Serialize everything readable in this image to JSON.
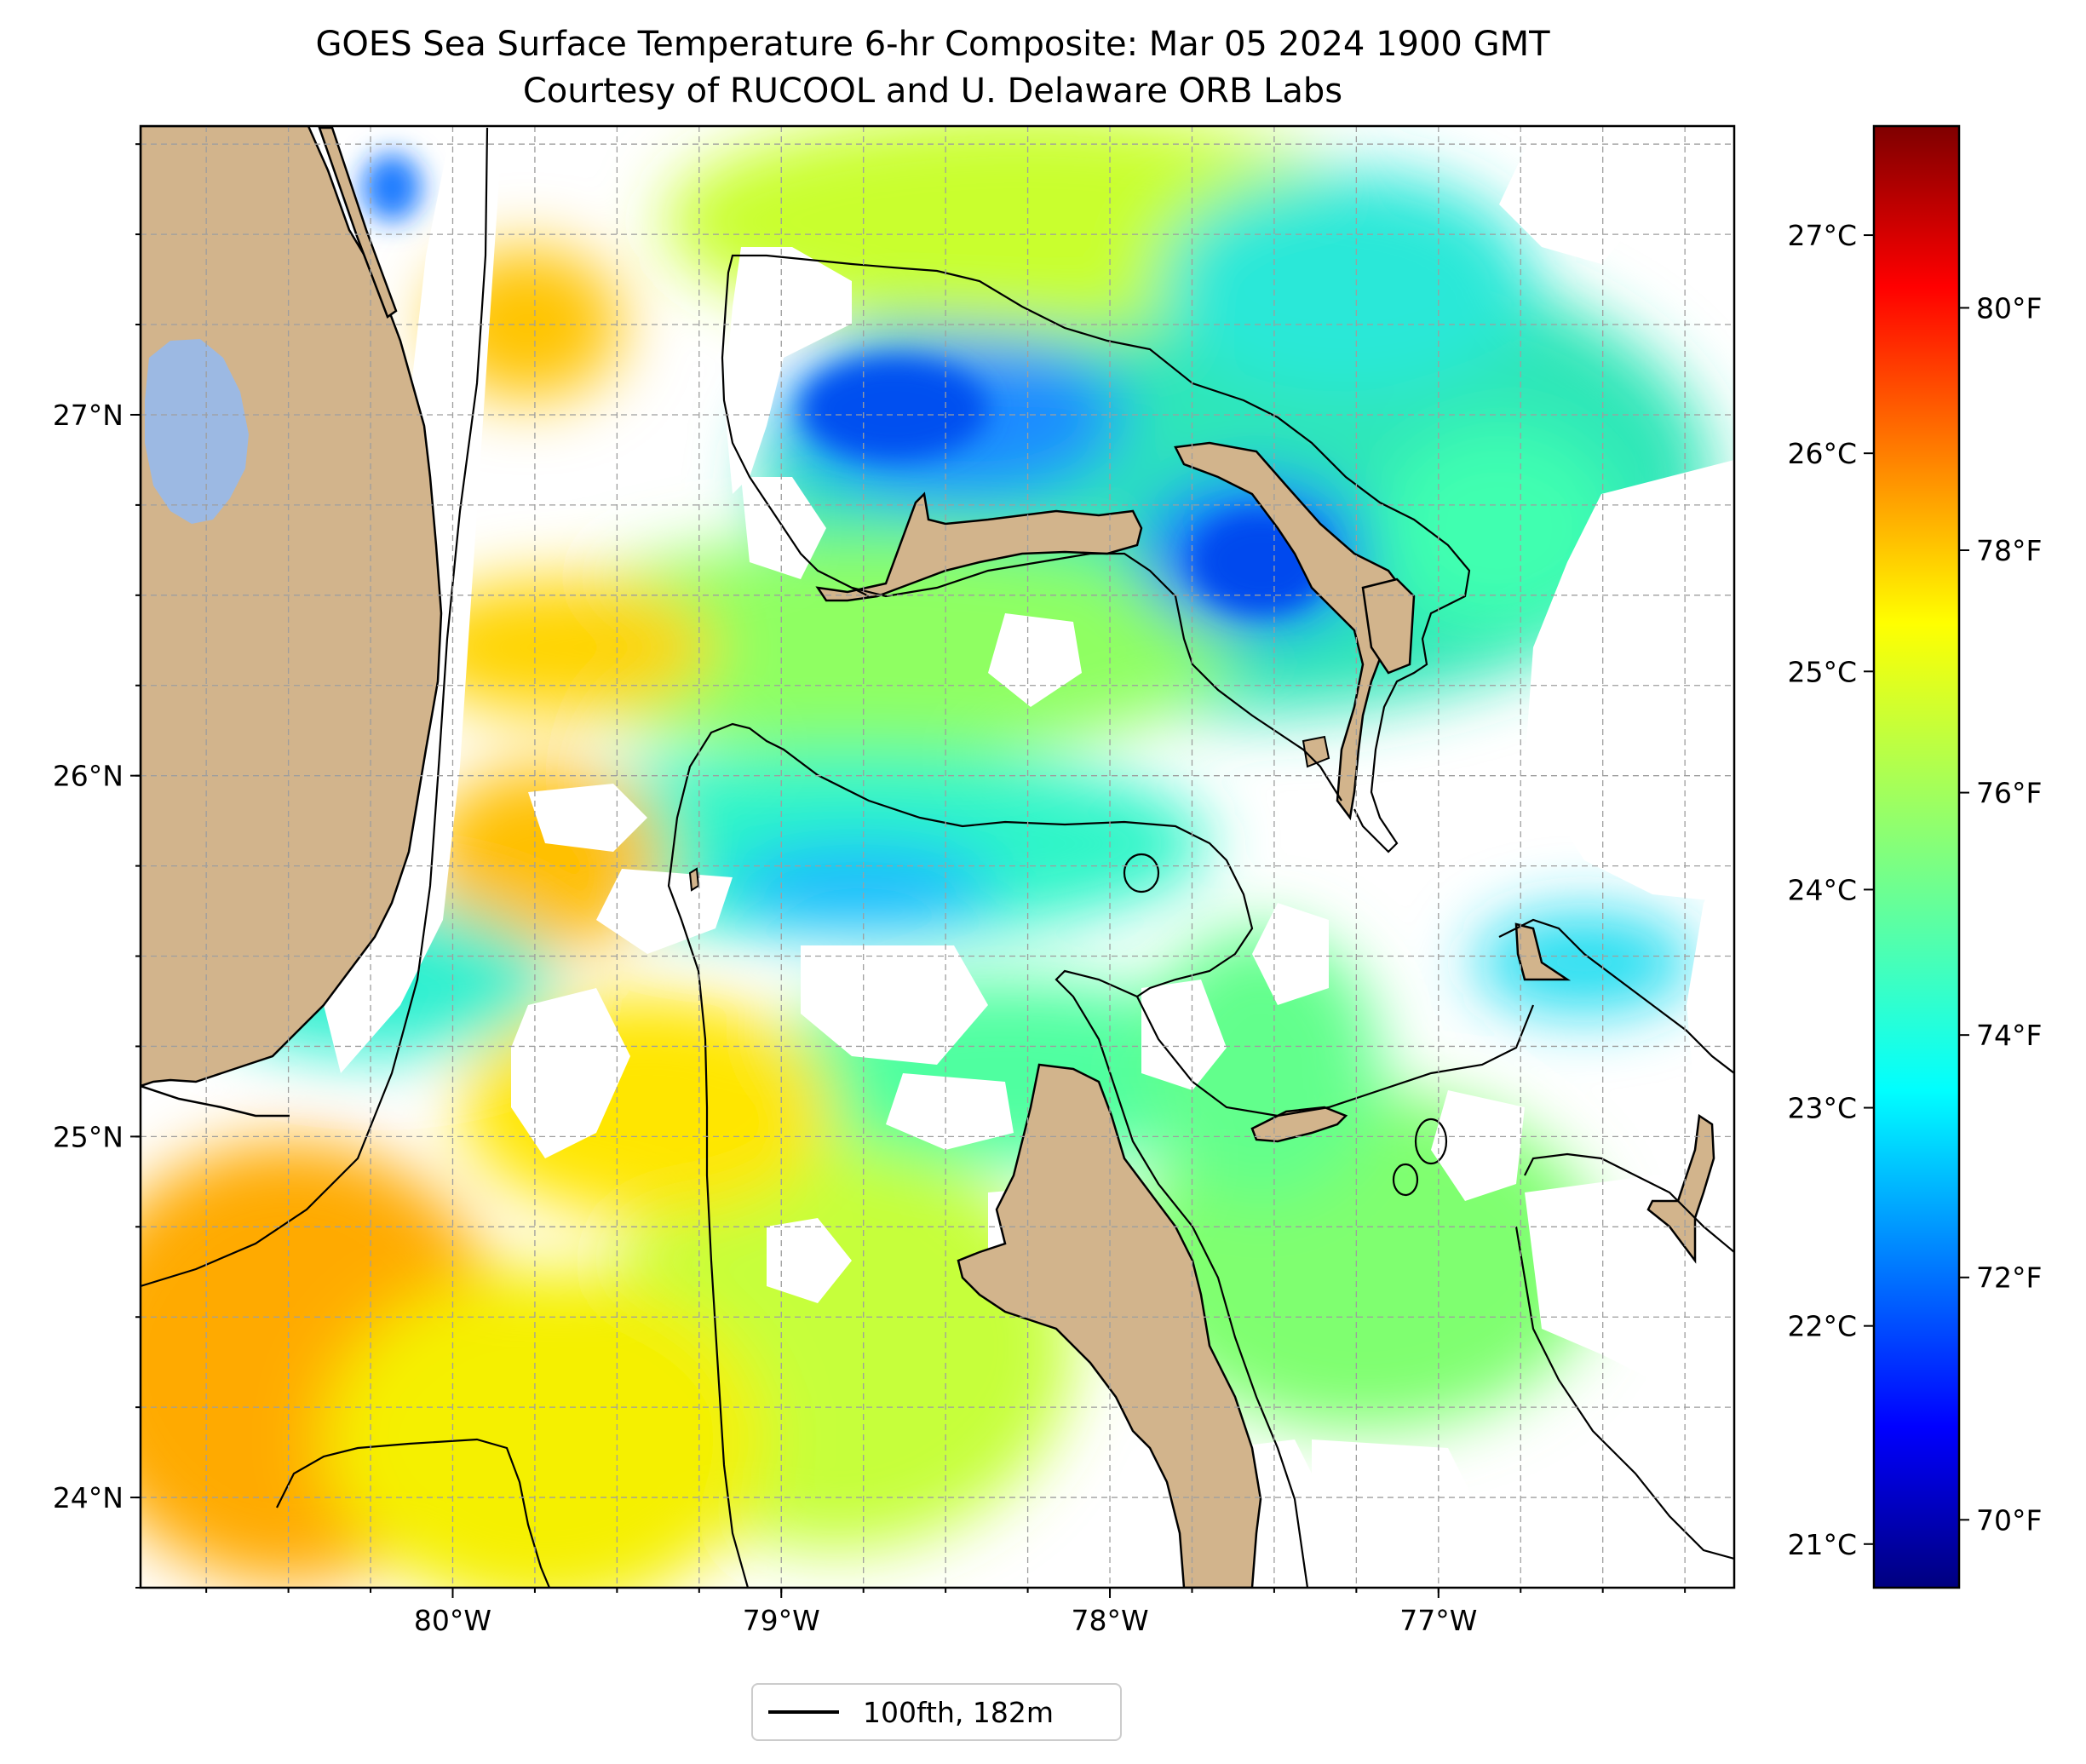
{
  "title": {
    "line1": "GOES Sea Surface Temperature 6-hr Composite: Mar 05 2024 1900 GMT",
    "line2": "Courtesy of RUCOOL and U. Delaware ORB Labs"
  },
  "map": {
    "lon_range": [
      -80.95,
      -76.1
    ],
    "lat_range": [
      23.75,
      27.8
    ],
    "lat_ticks": [
      {
        "value": 27,
        "label": "27°N"
      },
      {
        "value": 26,
        "label": "26°N"
      },
      {
        "value": 25,
        "label": "25°N"
      },
      {
        "value": 24,
        "label": "24°N"
      }
    ],
    "lon_ticks": [
      {
        "value": -80,
        "label": "80°W"
      },
      {
        "value": -79,
        "label": "79°W"
      },
      {
        "value": -78,
        "label": "78°W"
      },
      {
        "value": -77,
        "label": "77°W"
      }
    ],
    "gridlines": true,
    "colors": {
      "land": "#d2b48c",
      "lake": "#9cb9e3",
      "no_data": "#ffffff",
      "isobath": "#000000"
    }
  },
  "colorbar": {
    "colormap": "jet",
    "celsius_range": [
      20.8,
      27.5
    ],
    "celsius_ticks": [
      {
        "value": 27,
        "label": "27°C"
      },
      {
        "value": 26,
        "label": "26°C"
      },
      {
        "value": 25,
        "label": "25°C"
      },
      {
        "value": 24,
        "label": "24°C"
      },
      {
        "value": 23,
        "label": "23°C"
      },
      {
        "value": 22,
        "label": "22°C"
      },
      {
        "value": 21,
        "label": "21°C"
      }
    ],
    "fahrenheit_ticks": [
      {
        "value": 80,
        "label": "80°F"
      },
      {
        "value": 78,
        "label": "78°F"
      },
      {
        "value": 76,
        "label": "76°F"
      },
      {
        "value": 74,
        "label": "74°F"
      },
      {
        "value": 72,
        "label": "72°F"
      },
      {
        "value": 70,
        "label": "70°F"
      }
    ]
  },
  "legend": {
    "label": "100fth, 182m",
    "placement": "bottom-center"
  }
}
